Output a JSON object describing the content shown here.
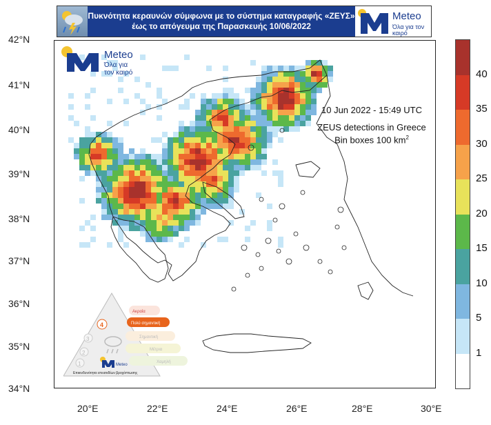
{
  "header": {
    "title_line1": "Πυκνότητα κεραυνών σύμφωνα με το σύστημα καταγραφής «ΖΕΥΣ»",
    "title_line2": "έως το απόγευμα της Παρασκευής 10/06/2022",
    "logo_text": "Meteo",
    "logo_tagline": "Όλα για τον καιρό"
  },
  "map_logo": {
    "text": "Meteo",
    "tagline_line1": "Όλα για",
    "tagline_line2": "τον καιρό"
  },
  "info": {
    "date": "10 Jun 2022 - 15:49 UTC",
    "line1": "ZEUS detections in Greece",
    "line2": "Bin boxes 100 km",
    "line2_sup": "2"
  },
  "axes": {
    "lat_labels": [
      "42°N",
      "41°N",
      "40°N",
      "39°N",
      "38°N",
      "37°N",
      "36°N",
      "35°N",
      "34°N"
    ],
    "lon_labels": [
      "20°E",
      "22°E",
      "24°E",
      "26°E",
      "28°E",
      "30°E"
    ],
    "lat_range": [
      34,
      42
    ],
    "lon_range": [
      19,
      30
    ]
  },
  "colorbar": {
    "labels": [
      "1",
      "5",
      "10",
      "15",
      "20",
      "25",
      "30",
      "35",
      "40"
    ],
    "colors": [
      "#ffffff",
      "#c6e6f7",
      "#7fb7e0",
      "#4aa3a0",
      "#5cb84a",
      "#e8e25a",
      "#f6a24a",
      "#ee6a2e",
      "#d63a26",
      "#a8322c"
    ]
  },
  "pyramid": {
    "levels": [
      "Ακραία",
      "Πολύ σημαντική",
      "Σημαντική",
      "Μέτρια",
      "Χαμηλή"
    ],
    "numbers": [
      "4",
      "3",
      "2",
      "1"
    ],
    "caption": "Επικινδυνότητα επεισοδίων βροχόπτωσης",
    "logo_text": "Meteo"
  }
}
